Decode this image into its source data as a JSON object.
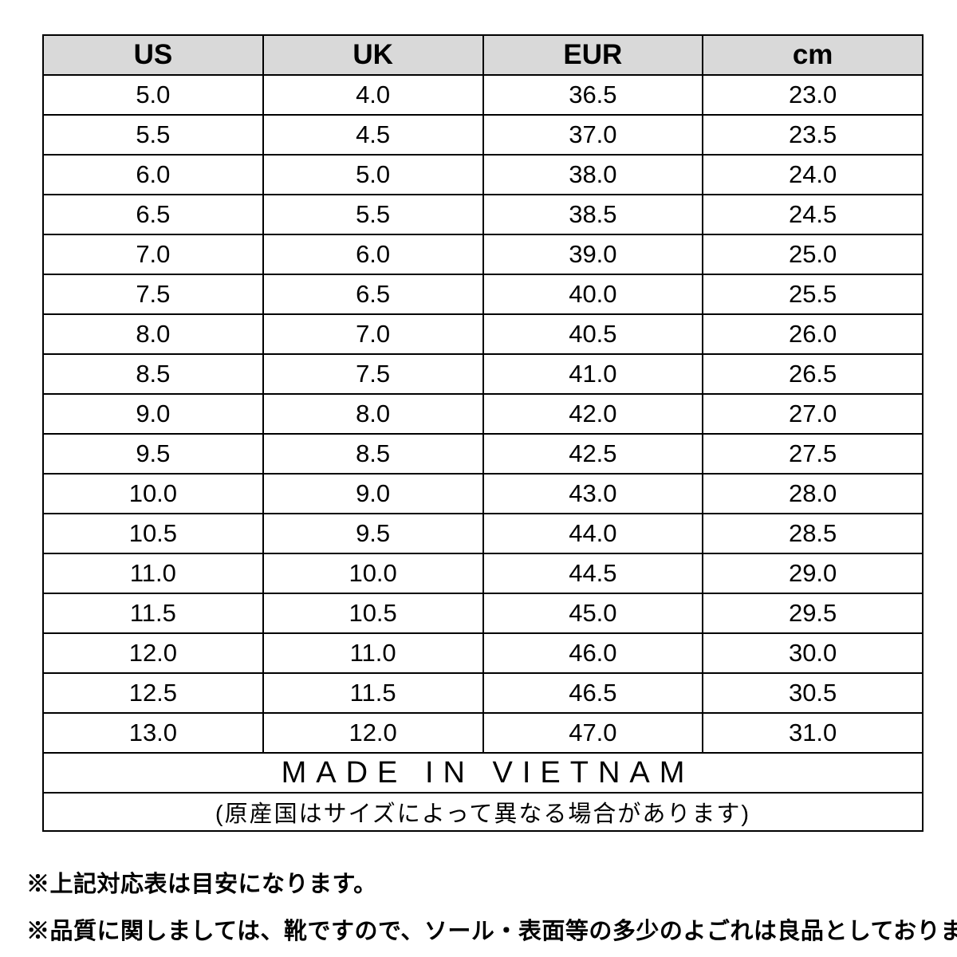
{
  "chart_data": {
    "type": "table",
    "columns": [
      "US",
      "UK",
      "EUR",
      "cm"
    ],
    "rows": [
      [
        "5.0",
        "4.0",
        "36.5",
        "23.0"
      ],
      [
        "5.5",
        "4.5",
        "37.0",
        "23.5"
      ],
      [
        "6.0",
        "5.0",
        "38.0",
        "24.0"
      ],
      [
        "6.5",
        "5.5",
        "38.5",
        "24.5"
      ],
      [
        "7.0",
        "6.0",
        "39.0",
        "25.0"
      ],
      [
        "7.5",
        "6.5",
        "40.0",
        "25.5"
      ],
      [
        "8.0",
        "7.0",
        "40.5",
        "26.0"
      ],
      [
        "8.5",
        "7.5",
        "41.0",
        "26.5"
      ],
      [
        "9.0",
        "8.0",
        "42.0",
        "27.0"
      ],
      [
        "9.5",
        "8.5",
        "42.5",
        "27.5"
      ],
      [
        "10.0",
        "9.0",
        "43.0",
        "28.0"
      ],
      [
        "10.5",
        "9.5",
        "44.0",
        "28.5"
      ],
      [
        "11.0",
        "10.0",
        "44.5",
        "29.0"
      ],
      [
        "11.5",
        "10.5",
        "45.0",
        "29.5"
      ],
      [
        "12.0",
        "11.0",
        "46.0",
        "30.0"
      ],
      [
        "12.5",
        "11.5",
        "46.5",
        "30.5"
      ],
      [
        "13.0",
        "12.0",
        "47.0",
        "31.0"
      ]
    ],
    "made_in": "MADE IN VIETNAM",
    "origin_note": "(原産国はサイズによって異なる場合があります)",
    "layout_hints": {
      "header_background": "#d9d9d9",
      "border_color": "#000000",
      "grid": "on"
    }
  },
  "notes": [
    "※上記対応表は目安になります。",
    "※品質に関しましては、靴ですので、ソール・表面等の多少のよごれは良品としております。"
  ],
  "colors": {
    "header_bg": "#d9d9d9",
    "border": "#000000",
    "text": "#000000",
    "background": "#ffffff"
  }
}
